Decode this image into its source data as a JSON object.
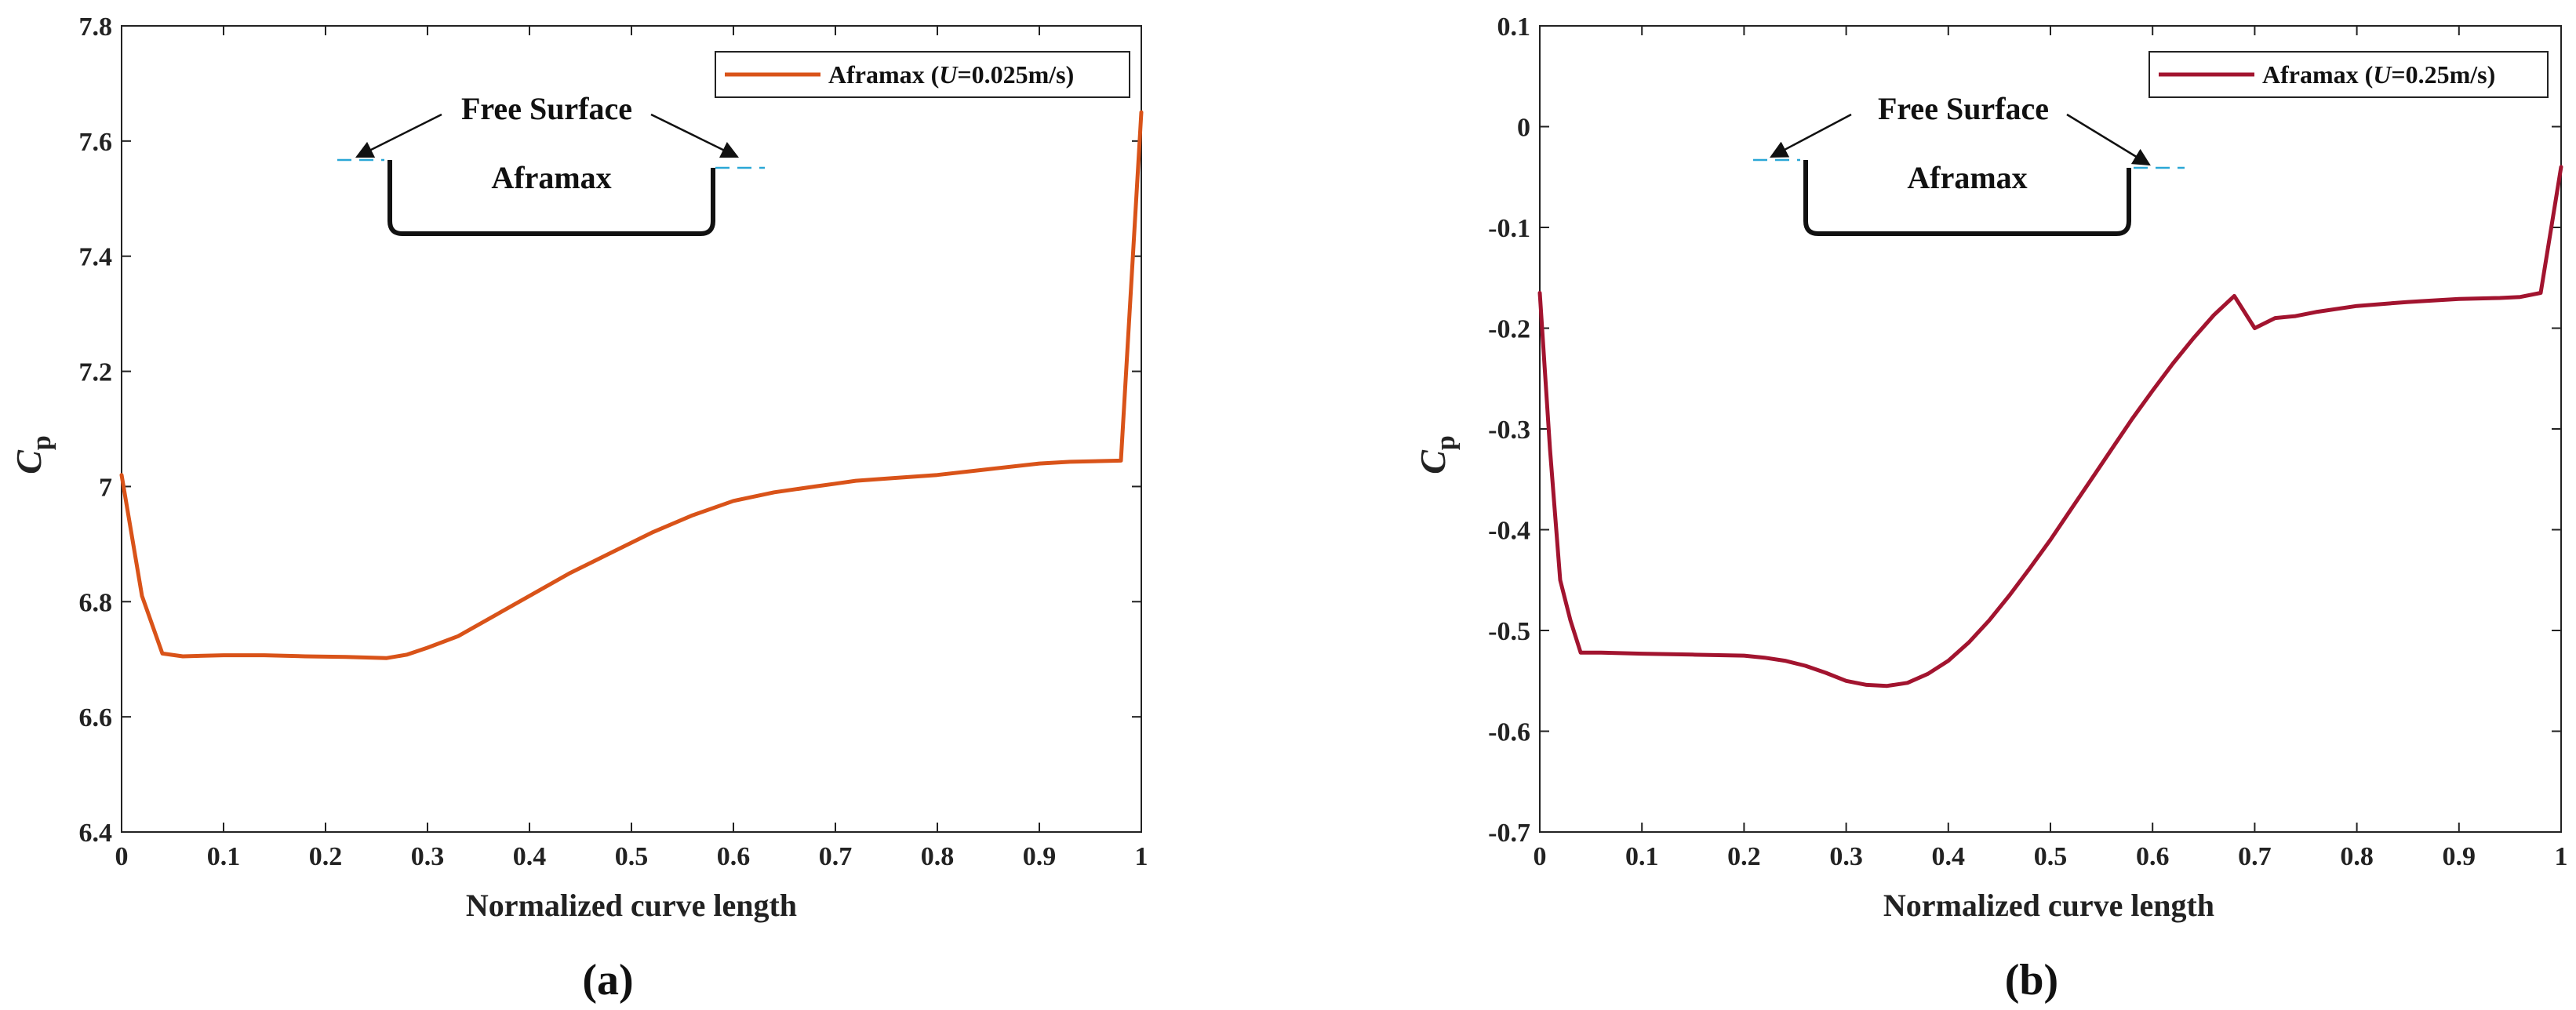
{
  "chart_data": [
    {
      "type": "line",
      "panel_label": "(a)",
      "xlabel": "Normalized curve length",
      "ylabel": "C",
      "ylabel_sub": "p",
      "xlim": [
        0,
        1
      ],
      "ylim": [
        6.4,
        7.8
      ],
      "xticks": [
        "0",
        "0.1",
        "0.2",
        "0.3",
        "0.4",
        "0.5",
        "0.6",
        "0.7",
        "0.8",
        "0.9",
        "1"
      ],
      "yticks": [
        "6.4",
        "6.6",
        "6.8",
        "7",
        "7.2",
        "7.4",
        "7.6",
        "7.8"
      ],
      "legend_position": "top-right",
      "series": [
        {
          "name": "Aframax (U=0.025m/s)",
          "legend": {
            "prefix": "Aframax (",
            "italic": "U",
            "suffix": "=0.025m/s)"
          },
          "color": "#d95319",
          "x": [
            0,
            0.02,
            0.04,
            0.06,
            0.1,
            0.14,
            0.18,
            0.22,
            0.26,
            0.28,
            0.3,
            0.33,
            0.36,
            0.4,
            0.44,
            0.48,
            0.52,
            0.56,
            0.6,
            0.64,
            0.68,
            0.7,
            0.72,
            0.76,
            0.8,
            0.85,
            0.9,
            0.93,
            0.98,
            1.0
          ],
          "y": [
            7.02,
            6.81,
            6.71,
            6.705,
            6.707,
            6.707,
            6.705,
            6.704,
            6.702,
            6.708,
            6.72,
            6.74,
            6.77,
            6.81,
            6.85,
            6.885,
            6.92,
            6.95,
            6.975,
            6.99,
            7.0,
            7.005,
            7.01,
            7.015,
            7.02,
            7.03,
            7.04,
            7.043,
            7.045,
            7.65
          ]
        }
      ],
      "inset": {
        "free_surface_label": "Free Surface",
        "hull_label": "Aframax"
      }
    },
    {
      "type": "line",
      "panel_label": "(b)",
      "xlabel": "Normalized curve length",
      "ylabel": "C",
      "ylabel_sub": "p",
      "xlim": [
        0,
        1
      ],
      "ylim": [
        -0.7,
        0.1
      ],
      "xticks": [
        "0",
        "0.1",
        "0.2",
        "0.3",
        "0.4",
        "0.5",
        "0.6",
        "0.7",
        "0.8",
        "0.9",
        "1"
      ],
      "yticks": [
        "-0.7",
        "-0.6",
        "-0.5",
        "-0.4",
        "-0.3",
        "-0.2",
        "-0.1",
        "0",
        "0.1"
      ],
      "legend_position": "top-right",
      "series": [
        {
          "name": "Aframax (U=0.25m/s)",
          "legend": {
            "prefix": "Aframax (",
            "italic": "U",
            "suffix": "=0.25m/s)"
          },
          "color": "#a2142f",
          "x": [
            0,
            0.01,
            0.02,
            0.03,
            0.04,
            0.06,
            0.1,
            0.15,
            0.2,
            0.22,
            0.24,
            0.26,
            0.28,
            0.3,
            0.32,
            0.34,
            0.36,
            0.38,
            0.4,
            0.42,
            0.44,
            0.46,
            0.48,
            0.5,
            0.52,
            0.54,
            0.56,
            0.58,
            0.6,
            0.62,
            0.64,
            0.66,
            0.68,
            0.7,
            0.72,
            0.74,
            0.76,
            0.8,
            0.85,
            0.9,
            0.94,
            0.96,
            0.98,
            1.0
          ],
          "y": [
            -0.165,
            -0.32,
            -0.45,
            -0.49,
            -0.522,
            -0.522,
            -0.523,
            -0.524,
            -0.525,
            -0.527,
            -0.53,
            -0.535,
            -0.542,
            -0.55,
            -0.554,
            -0.555,
            -0.552,
            -0.543,
            -0.53,
            -0.512,
            -0.49,
            -0.465,
            -0.438,
            -0.41,
            -0.38,
            -0.35,
            -0.32,
            -0.29,
            -0.262,
            -0.235,
            -0.21,
            -0.187,
            -0.168,
            -0.2,
            -0.19,
            -0.188,
            -0.184,
            -0.178,
            -0.174,
            -0.171,
            -0.17,
            -0.169,
            -0.165,
            -0.04
          ]
        }
      ],
      "inset": {
        "free_surface_label": "Free Surface",
        "hull_label": "Aframax"
      }
    }
  ]
}
